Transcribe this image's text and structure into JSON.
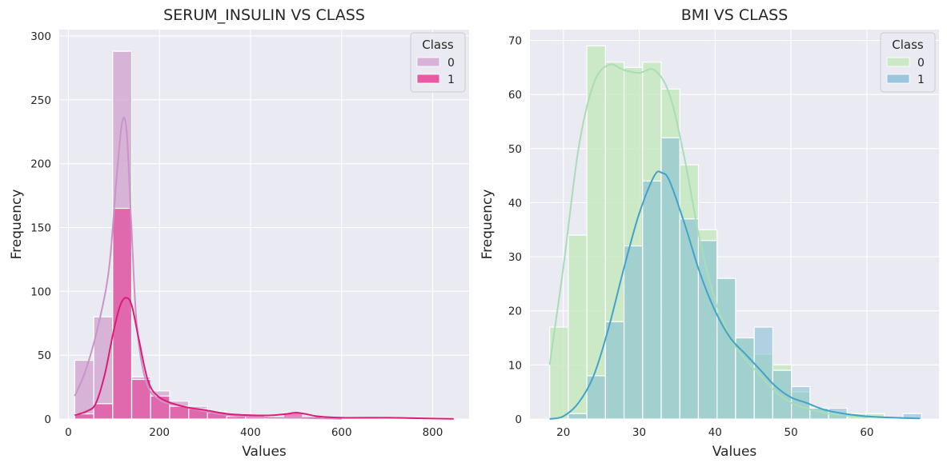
{
  "colors": {
    "panel_bg": "#EAEAF2",
    "grid": "#FFFFFF",
    "bar_edge": "#FFFFFF",
    "insulin_class0": "#D4A9D3",
    "insulin_class1": "#E7298A",
    "insulin_kde0": "#C994C7",
    "insulin_kde1": "#DD1C77",
    "bmi_class0": "#C7E9C0",
    "bmi_class1": "#7FBBD6",
    "bmi_kde0": "#A8DDB5",
    "bmi_kde1": "#43A2CA"
  },
  "chart_data": [
    {
      "type": "histogram",
      "title": "SERUM_INSULIN VS CLASS",
      "xlabel": "Values",
      "ylabel": "Frequency",
      "xlim": [
        -20,
        880
      ],
      "ylim": [
        0,
        305
      ],
      "xticks": [
        0,
        200,
        400,
        600,
        800
      ],
      "yticks": [
        0,
        50,
        100,
        150,
        200,
        250,
        300
      ],
      "legend": {
        "title": "Class",
        "entries": [
          "0",
          "1"
        ],
        "position": "top-right"
      },
      "bin_start": 14,
      "bin_width": 41.7,
      "series": [
        {
          "name": "0",
          "counts": [
            46,
            80,
            288,
            33,
            22,
            14,
            10,
            6,
            3,
            1,
            0,
            2,
            2,
            0,
            0,
            0,
            0,
            0,
            0,
            0
          ]
        },
        {
          "name": "1",
          "counts": [
            4,
            12,
            165,
            31,
            18,
            10,
            8,
            5,
            2,
            3,
            2,
            5,
            2,
            1,
            1,
            1,
            0,
            0,
            1,
            1
          ]
        }
      ],
      "kde": [
        {
          "name": "0",
          "x": [
            14,
            40,
            70,
            90,
            105,
            118,
            128,
            138,
            150,
            170,
            200,
            250,
            300,
            350,
            400,
            450,
            500,
            550,
            600
          ],
          "y": [
            18,
            40,
            80,
            120,
            185,
            232,
            225,
            155,
            75,
            30,
            15,
            10,
            6,
            3,
            2,
            1,
            1,
            0.5,
            0.2
          ]
        },
        {
          "name": "1",
          "x": [
            14,
            40,
            60,
            80,
            100,
            115,
            128,
            140,
            155,
            175,
            200,
            250,
            300,
            350,
            400,
            450,
            480,
            500,
            520,
            550,
            600,
            700,
            800,
            846
          ],
          "y": [
            3,
            6,
            12,
            35,
            70,
            90,
            95,
            88,
            62,
            30,
            17,
            10,
            7,
            4,
            3,
            3,
            4,
            5,
            4,
            2,
            1,
            1,
            0.4,
            0.2
          ]
        }
      ]
    },
    {
      "type": "histogram",
      "title": "BMI VS CLASS",
      "xlabel": "Values",
      "ylabel": "Frequency",
      "xlim": [
        15.6,
        69.5
      ],
      "ylim": [
        0,
        72
      ],
      "xticks": [
        20,
        30,
        40,
        50,
        60
      ],
      "yticks": [
        0,
        10,
        20,
        30,
        40,
        50,
        60,
        70
      ],
      "legend": {
        "title": "Class",
        "entries": [
          "0",
          "1"
        ],
        "position": "top-right"
      },
      "bin_start": 18.2,
      "bin_width": 2.45,
      "series": [
        {
          "name": "0",
          "counts": [
            17,
            34,
            69,
            66,
            65,
            66,
            61,
            47,
            35,
            26,
            15,
            12,
            10,
            5,
            2,
            1,
            1,
            1,
            0,
            0
          ]
        },
        {
          "name": "1",
          "counts": [
            0,
            1,
            8,
            18,
            32,
            44,
            52,
            37,
            33,
            26,
            15,
            17,
            9,
            6,
            2,
            2,
            0,
            0,
            0,
            1
          ]
        }
      ],
      "kde": [
        {
          "name": "0",
          "x": [
            18.2,
            20,
            22,
            24,
            26,
            28,
            30,
            32,
            34,
            36,
            38,
            40,
            42,
            44,
            46,
            48,
            50,
            52,
            55,
            60
          ],
          "y": [
            10,
            28,
            50,
            62,
            65.5,
            64.5,
            64,
            64.5,
            60,
            48,
            33,
            22,
            15,
            11,
            8,
            5,
            3,
            2,
            1,
            0.3
          ]
        },
        {
          "name": "1",
          "x": [
            18.2,
            20,
            22,
            24,
            26,
            28,
            30,
            32,
            33,
            34,
            36,
            38,
            40,
            42,
            44,
            46,
            48,
            50,
            52,
            55,
            60,
            67
          ],
          "y": [
            0,
            0.5,
            3,
            8,
            17,
            28,
            38,
            45,
            45.5,
            44,
            36,
            27,
            20,
            15,
            12,
            9,
            6,
            4,
            3,
            1.5,
            0.5,
            0.1
          ]
        }
      ]
    }
  ]
}
